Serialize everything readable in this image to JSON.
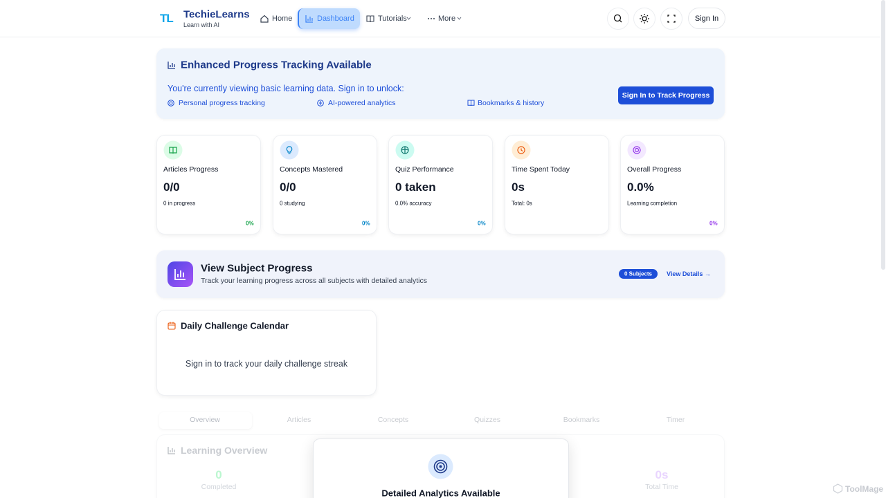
{
  "nav": {
    "logo": "TL",
    "brand": "TechieLearns",
    "tagline": "Learn with AI",
    "items": [
      "Home",
      "Dashboard",
      "Tutorials",
      "More"
    ],
    "sign_in": "Sign In"
  },
  "banner": {
    "title": "Enhanced Progress Tracking Available",
    "text": "You're currently viewing basic learning data. Sign in to unlock:",
    "features": [
      "Personal progress tracking",
      "AI-powered analytics",
      "Bookmarks & history"
    ],
    "button": "Sign In to Track Progress"
  },
  "stats": [
    {
      "label": "Articles Progress",
      "value": "0/0",
      "sub": "0 in progress",
      "percent": "0%"
    },
    {
      "label": "Concepts Mastered",
      "value": "0/0",
      "sub": "0 studying",
      "percent": "0%"
    },
    {
      "label": "Quiz Performance",
      "value": "0 taken",
      "sub": "0.0% accuracy",
      "percent": "0%"
    },
    {
      "label": "Time Spent Today",
      "value": "0s",
      "sub": "Total: 0s"
    },
    {
      "label": "Overall Progress",
      "value": "0.0%",
      "sub": "Learning completion",
      "percent": "0%"
    }
  ],
  "subjects": {
    "title": "View Subject Progress",
    "subtitle": "Track your learning progress across all subjects with detailed analytics",
    "badge": "0 Subjects",
    "link": "View Details →"
  },
  "calendar": {
    "title": "Daily Challenge Calendar",
    "message": "Sign in to track your daily challenge streak"
  },
  "tabs": [
    "Overview",
    "Articles",
    "Concepts",
    "Quizzes",
    "Bookmarks",
    "Timer"
  ],
  "overview": {
    "title": "Learning Overview",
    "stats": [
      {
        "value": "0",
        "label": "Completed"
      },
      {
        "value": "0s",
        "label": "Total Time"
      }
    ]
  },
  "modal": {
    "title": "Detailed Analytics Available"
  },
  "watermark": "ToolMage"
}
